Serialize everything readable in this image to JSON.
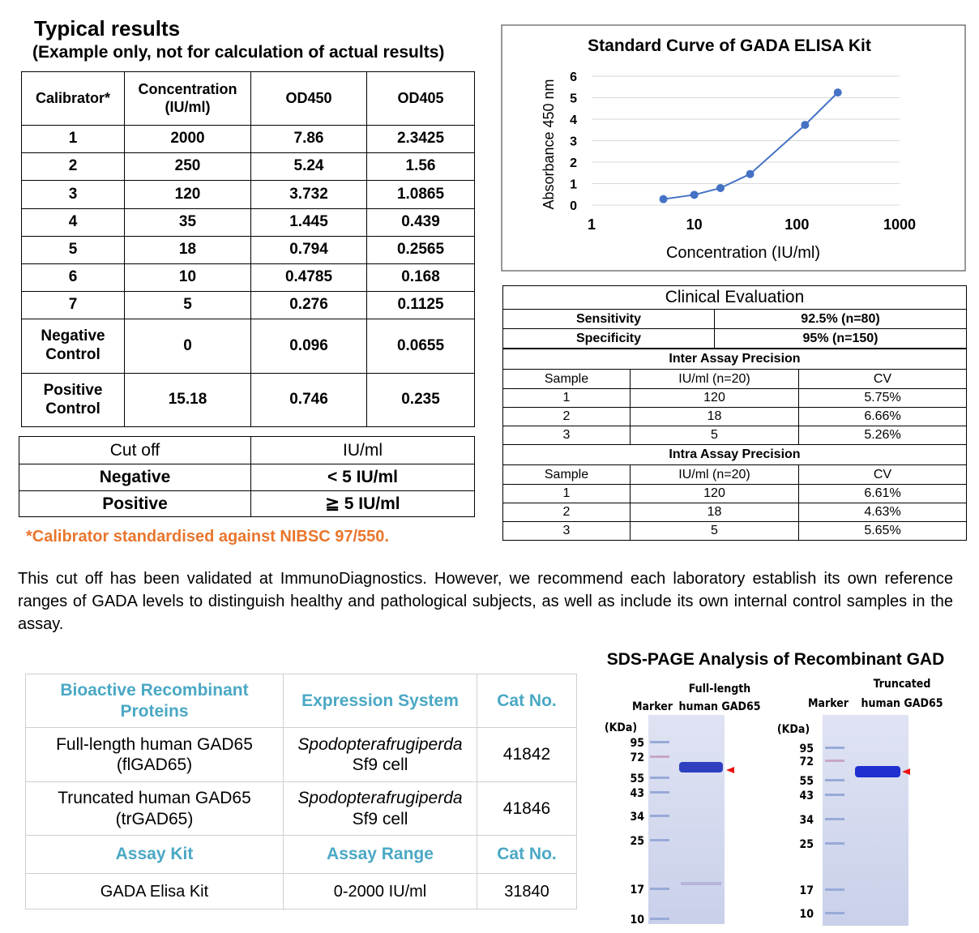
{
  "heading": "Typical results",
  "subheading": "(Example only, not for calculation of actual results)",
  "results_table": {
    "header": [
      "Calibrator*",
      "Concentration (IU/ml)",
      "OD450",
      "OD405"
    ],
    "rows": [
      [
        "1",
        "2000",
        "7.86",
        "2.3425"
      ],
      [
        "2",
        "250",
        "5.24",
        "1.56"
      ],
      [
        "3",
        "120",
        "3.732",
        "1.0865"
      ],
      [
        "4",
        "35",
        "1.445",
        "0.439"
      ],
      [
        "5",
        "18",
        "0.794",
        "0.2565"
      ],
      [
        "6",
        "10",
        "0.4785",
        "0.168"
      ],
      [
        "7",
        "5",
        "0.276",
        "0.1125"
      ],
      [
        "Negative Control",
        "0",
        "0.096",
        "0.0655"
      ],
      [
        "Positive Control",
        "15.18",
        "0.746",
        "0.235"
      ]
    ]
  },
  "cutoff_table": {
    "header": [
      "Cut off",
      "IU/ml"
    ],
    "rows": [
      [
        "Negative",
        "< 5 IU/ml"
      ],
      [
        "Positive",
        "≧ 5 IU/ml"
      ]
    ]
  },
  "footnote": "*Calibrator standardised against NIBSC 97/550.",
  "chart_data": {
    "type": "line",
    "title": "Standard Curve of GADA ELISA Kit",
    "x_label": "Concentration (IU/ml)",
    "y_label": "Absorbance 450 nm",
    "x": [
      5,
      10,
      18,
      35,
      120,
      250
    ],
    "series": [
      {
        "name": "OD450",
        "color": "#4472c4",
        "values": [
          0.276,
          0.4785,
          0.794,
          1.445,
          3.732,
          5.24
        ]
      }
    ],
    "xlim": [
      1,
      1000
    ],
    "xticks": [
      1,
      10,
      100,
      1000
    ],
    "x_log": true,
    "ylim": [
      0,
      6
    ],
    "yticks": [
      0,
      1,
      2,
      3,
      4,
      5,
      6
    ],
    "grid": true
  },
  "clinical_table": {
    "title": "Clinical Evaluation",
    "rows": [
      [
        "Sensitivity",
        "92.5% (n=80)"
      ],
      [
        "Specificity",
        "95% (n=150)"
      ]
    ],
    "inter": {
      "title": "Inter Assay Precision",
      "header": [
        "Sample",
        "IU/ml (n=20)",
        "CV"
      ],
      "rows": [
        [
          "1",
          "120",
          "5.75%"
        ],
        [
          "2",
          "18",
          "6.66%"
        ],
        [
          "3",
          "5",
          "5.26%"
        ]
      ]
    },
    "intra": {
      "title": "Intra Assay Precision",
      "header": [
        "Sample",
        "IU/ml (n=20)",
        "CV"
      ],
      "rows": [
        [
          "1",
          "120",
          "6.61%"
        ],
        [
          "2",
          "18",
          "4.63%"
        ],
        [
          "3",
          "5",
          "5.65%"
        ]
      ]
    }
  },
  "paragraph": "This cut off has been validated at ImmunoDiagnostics. However, we recommend each laboratory establish its own reference ranges of GADA levels to distinguish healthy and pathological subjects, as well as include its own internal control samples in the assay.",
  "product_table": {
    "header": [
      "Bioactive Recombinant Proteins",
      "Expression System",
      "Cat No."
    ],
    "rows": [
      {
        "name": "Full-length human GAD65 (flGAD65)",
        "species": "Spodopterafrugiperda",
        "cell": "Sf9 cell",
        "cat": "41842"
      },
      {
        "name": "Truncated human GAD65 (trGAD65)",
        "species": "Spodopterafrugiperda",
        "cell": "Sf9 cell",
        "cat": "41846"
      }
    ],
    "header2": [
      "Assay Kit",
      "Assay Range",
      "Cat No."
    ],
    "kit": [
      "GADA Elisa Kit",
      "0-2000 IU/ml",
      "31840"
    ]
  },
  "sds_page": {
    "title": "SDS-PAGE Analysis of Recombinant GAD",
    "gels": [
      {
        "marker": "Marker",
        "sample": [
          "Full-length",
          "human GAD65"
        ],
        "unit": "(KDa)",
        "sizes": [
          "95",
          "72",
          "55",
          "43",
          "34",
          "25",
          "17",
          "10"
        ]
      },
      {
        "marker": "Marker",
        "sample": [
          "Truncated",
          "human GAD65"
        ],
        "unit": "(KDa)",
        "sizes": [
          "95",
          "72",
          "55",
          "43",
          "34",
          "25",
          "17",
          "10"
        ]
      }
    ]
  }
}
